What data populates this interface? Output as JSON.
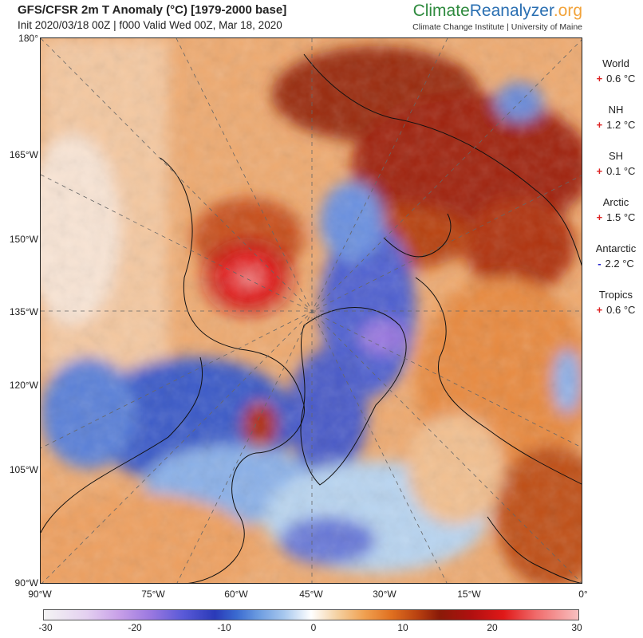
{
  "header": {
    "title": "GFS/CFSR 2m T Anomaly (°C) [1979-2000 base]",
    "subtitle": "Init 2020/03/18 00Z | f000 Valid Wed 00Z, Mar 18, 2020"
  },
  "brand": {
    "part1": "Climate",
    "part2": "Reanalyzer",
    "part3": ".org",
    "subtitle": "Climate Change Institute | University of Maine"
  },
  "map": {
    "lat_labels": [
      "180°",
      "165°W",
      "150°W",
      "135°W",
      "120°W",
      "105°W",
      "90°W"
    ],
    "lon_labels": [
      "90°W",
      "75°W",
      "60°W",
      "45°W",
      "30°W",
      "15°W",
      "0°"
    ]
  },
  "stats": [
    {
      "name": "World",
      "sign": "+",
      "value": "0.6 °C"
    },
    {
      "name": "NH",
      "sign": "+",
      "value": "1.2 °C"
    },
    {
      "name": "SH",
      "sign": "+",
      "value": "0.1 °C"
    },
    {
      "name": "Arctic",
      "sign": "+",
      "value": "1.5 °C"
    },
    {
      "name": "Antarctic",
      "sign": "-",
      "value": "2.2 °C"
    },
    {
      "name": "Tropics",
      "sign": "+",
      "value": "0.6 °C"
    }
  ],
  "colorbar": {
    "ticks": [
      "-30",
      "-20",
      "-10",
      "0",
      "10",
      "20",
      "30"
    ],
    "min": -30,
    "max": 30
  },
  "colors": {
    "warm_extreme": "#e01818",
    "warm": "#e07020",
    "cold": "#2a3ab8",
    "cold_extreme": "#9a78e0"
  }
}
